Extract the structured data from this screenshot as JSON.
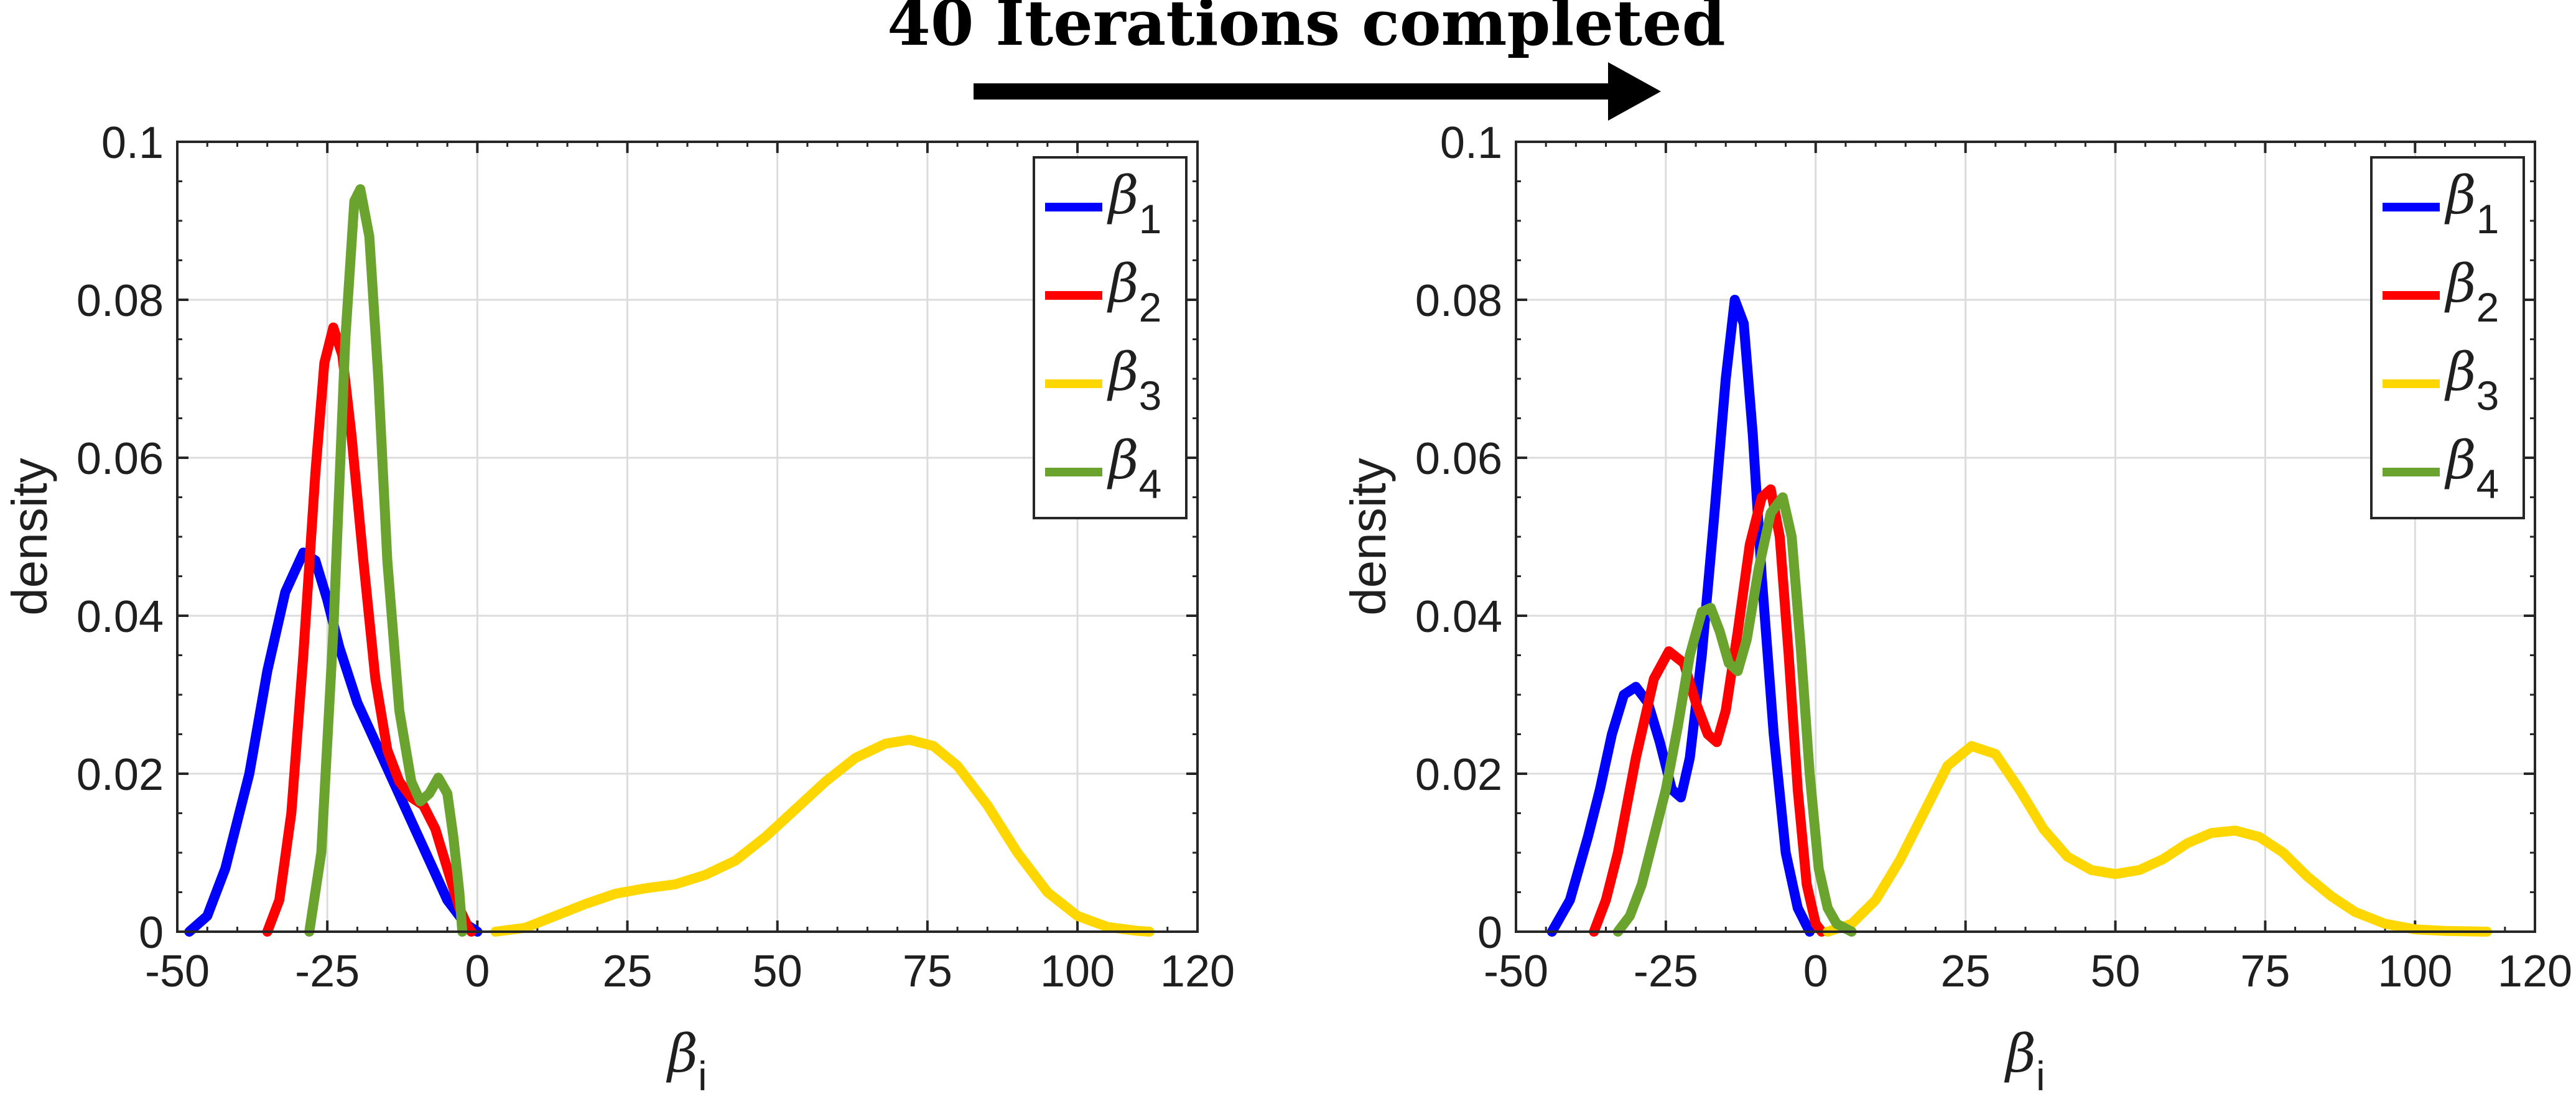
{
  "annotation": {
    "title": "40 Iterations completed",
    "arrow_icon": "right-arrow-icon"
  },
  "colors": {
    "beta1": "#0000ff",
    "beta2": "#ff0000",
    "beta3": "#ffd700",
    "beta4": "#6aa32e"
  },
  "chart_data": [
    {
      "type": "line",
      "title": "",
      "xlabel_symbol": "β",
      "xlabel_sub": "i",
      "ylabel": "density",
      "xlim": [
        -50,
        120
      ],
      "ylim": [
        0,
        0.1
      ],
      "xticks": [
        -50,
        -25,
        0,
        25,
        50,
        75,
        100,
        120
      ],
      "xtick_labels": [
        "-50",
        "-25",
        "0",
        "25",
        "50",
        "75",
        "100",
        "120"
      ],
      "yticks": [
        0,
        0.02,
        0.04,
        0.06,
        0.08,
        0.1
      ],
      "ytick_labels": [
        "0",
        "0.02",
        "0.04",
        "0.06",
        "0.08",
        "0.1"
      ],
      "grid": true,
      "legend_position": "top-right",
      "series": [
        {
          "name": "β1",
          "symbol": "β",
          "sub": "1",
          "color_key": "beta1",
          "points": [
            [
              -48,
              0
            ],
            [
              -45,
              0.002
            ],
            [
              -42,
              0.008
            ],
            [
              -38,
              0.02
            ],
            [
              -35,
              0.033
            ],
            [
              -32,
              0.043
            ],
            [
              -29,
              0.048
            ],
            [
              -27,
              0.047
            ],
            [
              -25,
              0.042
            ],
            [
              -23,
              0.036
            ],
            [
              -20,
              0.029
            ],
            [
              -17,
              0.024
            ],
            [
              -14,
              0.019
            ],
            [
              -11,
              0.014
            ],
            [
              -8,
              0.009
            ],
            [
              -5,
              0.004
            ],
            [
              -2,
              0.001
            ],
            [
              0,
              0
            ]
          ]
        },
        {
          "name": "β2",
          "symbol": "β",
          "sub": "2",
          "color_key": "beta2",
          "points": [
            [
              -35,
              0
            ],
            [
              -33,
              0.004
            ],
            [
              -31,
              0.015
            ],
            [
              -29,
              0.035
            ],
            [
              -27,
              0.058
            ],
            [
              -25.5,
              0.072
            ],
            [
              -24,
              0.0765
            ],
            [
              -22.5,
              0.073
            ],
            [
              -21,
              0.063
            ],
            [
              -19,
              0.047
            ],
            [
              -17,
              0.032
            ],
            [
              -15,
              0.023
            ],
            [
              -13,
              0.019
            ],
            [
              -11,
              0.017
            ],
            [
              -9,
              0.016
            ],
            [
              -7,
              0.013
            ],
            [
              -5,
              0.008
            ],
            [
              -3,
              0.003
            ],
            [
              -1.5,
              0.0005
            ],
            [
              -1,
              0
            ]
          ]
        },
        {
          "name": "β3",
          "symbol": "β",
          "sub": "3",
          "color_key": "beta3",
          "points": [
            [
              3,
              0
            ],
            [
              8,
              0.0005
            ],
            [
              13,
              0.002
            ],
            [
              18,
              0.0035
            ],
            [
              23,
              0.0048
            ],
            [
              28,
              0.0055
            ],
            [
              33,
              0.006
            ],
            [
              38,
              0.0072
            ],
            [
              43,
              0.009
            ],
            [
              48,
              0.012
            ],
            [
              53,
              0.0155
            ],
            [
              58,
              0.019
            ],
            [
              63,
              0.022
            ],
            [
              68,
              0.0238
            ],
            [
              72,
              0.0243
            ],
            [
              76,
              0.0235
            ],
            [
              80,
              0.021
            ],
            [
              85,
              0.016
            ],
            [
              90,
              0.01
            ],
            [
              95,
              0.005
            ],
            [
              100,
              0.002
            ],
            [
              105,
              0.0006
            ],
            [
              110,
              0.0001
            ],
            [
              112,
              0
            ]
          ]
        },
        {
          "name": "β4",
          "symbol": "β",
          "sub": "4",
          "color_key": "beta4",
          "points": [
            [
              -28,
              0
            ],
            [
              -26,
              0.01
            ],
            [
              -24,
              0.038
            ],
            [
              -22,
              0.075
            ],
            [
              -20.5,
              0.0925
            ],
            [
              -19.5,
              0.094
            ],
            [
              -18,
              0.088
            ],
            [
              -16.5,
              0.07
            ],
            [
              -15,
              0.047
            ],
            [
              -13,
              0.028
            ],
            [
              -11,
              0.019
            ],
            [
              -9.5,
              0.0165
            ],
            [
              -8,
              0.0175
            ],
            [
              -6.5,
              0.0195
            ],
            [
              -5,
              0.0175
            ],
            [
              -4,
              0.012
            ],
            [
              -3,
              0.005
            ],
            [
              -2.5,
              0
            ]
          ]
        }
      ]
    },
    {
      "type": "line",
      "title": "",
      "xlabel_symbol": "β",
      "xlabel_sub": "i",
      "ylabel": "density",
      "xlim": [
        -50,
        120
      ],
      "ylim": [
        0,
        0.1
      ],
      "xticks": [
        -50,
        -25,
        0,
        25,
        50,
        75,
        100,
        120
      ],
      "xtick_labels": [
        "-50",
        "-25",
        "0",
        "25",
        "50",
        "75",
        "100",
        "120"
      ],
      "yticks": [
        0,
        0.02,
        0.04,
        0.06,
        0.08,
        0.1
      ],
      "ytick_labels": [
        "0",
        "0.02",
        "0.04",
        "0.06",
        "0.08",
        "0.1"
      ],
      "grid": true,
      "legend_position": "top-right",
      "series": [
        {
          "name": "β1",
          "symbol": "β",
          "sub": "1",
          "color_key": "beta1",
          "points": [
            [
              -44,
              0
            ],
            [
              -41,
              0.004
            ],
            [
              -38,
              0.012
            ],
            [
              -36,
              0.018
            ],
            [
              -34,
              0.025
            ],
            [
              -32,
              0.03
            ],
            [
              -30,
              0.031
            ],
            [
              -28,
              0.029
            ],
            [
              -26,
              0.024
            ],
            [
              -24,
              0.018
            ],
            [
              -22.5,
              0.017
            ],
            [
              -21,
              0.022
            ],
            [
              -19,
              0.035
            ],
            [
              -17,
              0.052
            ],
            [
              -15,
              0.07
            ],
            [
              -13.5,
              0.08
            ],
            [
              -12,
              0.077
            ],
            [
              -10.5,
              0.063
            ],
            [
              -9,
              0.045
            ],
            [
              -7,
              0.025
            ],
            [
              -5,
              0.01
            ],
            [
              -3,
              0.003
            ],
            [
              -1,
              0
            ]
          ]
        },
        {
          "name": "β2",
          "symbol": "β",
          "sub": "2",
          "color_key": "beta2",
          "points": [
            [
              -37,
              0
            ],
            [
              -35,
              0.004
            ],
            [
              -33,
              0.01
            ],
            [
              -30,
              0.022
            ],
            [
              -27,
              0.032
            ],
            [
              -24.5,
              0.0355
            ],
            [
              -22,
              0.034
            ],
            [
              -20,
              0.029
            ],
            [
              -18,
              0.025
            ],
            [
              -16.5,
              0.024
            ],
            [
              -15,
              0.028
            ],
            [
              -13,
              0.038
            ],
            [
              -11,
              0.049
            ],
            [
              -9,
              0.055
            ],
            [
              -7.5,
              0.056
            ],
            [
              -6,
              0.05
            ],
            [
              -4.5,
              0.035
            ],
            [
              -3,
              0.018
            ],
            [
              -1.5,
              0.006
            ],
            [
              0,
              0.001
            ],
            [
              1,
              0
            ]
          ]
        },
        {
          "name": "β3",
          "symbol": "β",
          "sub": "3",
          "color_key": "beta3",
          "points": [
            [
              2,
              0
            ],
            [
              6,
              0.001
            ],
            [
              10,
              0.004
            ],
            [
              14,
              0.009
            ],
            [
              18,
              0.015
            ],
            [
              22,
              0.021
            ],
            [
              26,
              0.0235
            ],
            [
              30,
              0.0225
            ],
            [
              34,
              0.018
            ],
            [
              38,
              0.013
            ],
            [
              42,
              0.0095
            ],
            [
              46,
              0.0078
            ],
            [
              50,
              0.0073
            ],
            [
              54,
              0.0078
            ],
            [
              58,
              0.0092
            ],
            [
              62,
              0.0112
            ],
            [
              66,
              0.0125
            ],
            [
              70,
              0.0128
            ],
            [
              74,
              0.012
            ],
            [
              78,
              0.01
            ],
            [
              82,
              0.007
            ],
            [
              86,
              0.0045
            ],
            [
              90,
              0.0025
            ],
            [
              95,
              0.001
            ],
            [
              100,
              0.0003
            ],
            [
              105,
              0.0001
            ],
            [
              112,
              0
            ]
          ]
        },
        {
          "name": "β4",
          "symbol": "β",
          "sub": "4",
          "color_key": "beta4",
          "points": [
            [
              -33,
              0
            ],
            [
              -31,
              0.002
            ],
            [
              -29,
              0.006
            ],
            [
              -27,
              0.012
            ],
            [
              -25,
              0.018
            ],
            [
              -23,
              0.026
            ],
            [
              -21,
              0.035
            ],
            [
              -19,
              0.0405
            ],
            [
              -17.5,
              0.041
            ],
            [
              -16,
              0.038
            ],
            [
              -14.5,
              0.034
            ],
            [
              -13,
              0.033
            ],
            [
              -11.5,
              0.037
            ],
            [
              -9.5,
              0.046
            ],
            [
              -7.5,
              0.053
            ],
            [
              -5.5,
              0.055
            ],
            [
              -4,
              0.05
            ],
            [
              -2.5,
              0.036
            ],
            [
              -1,
              0.02
            ],
            [
              0.5,
              0.008
            ],
            [
              2,
              0.003
            ],
            [
              3.5,
              0.001
            ],
            [
              6,
              0
            ]
          ]
        }
      ]
    }
  ]
}
